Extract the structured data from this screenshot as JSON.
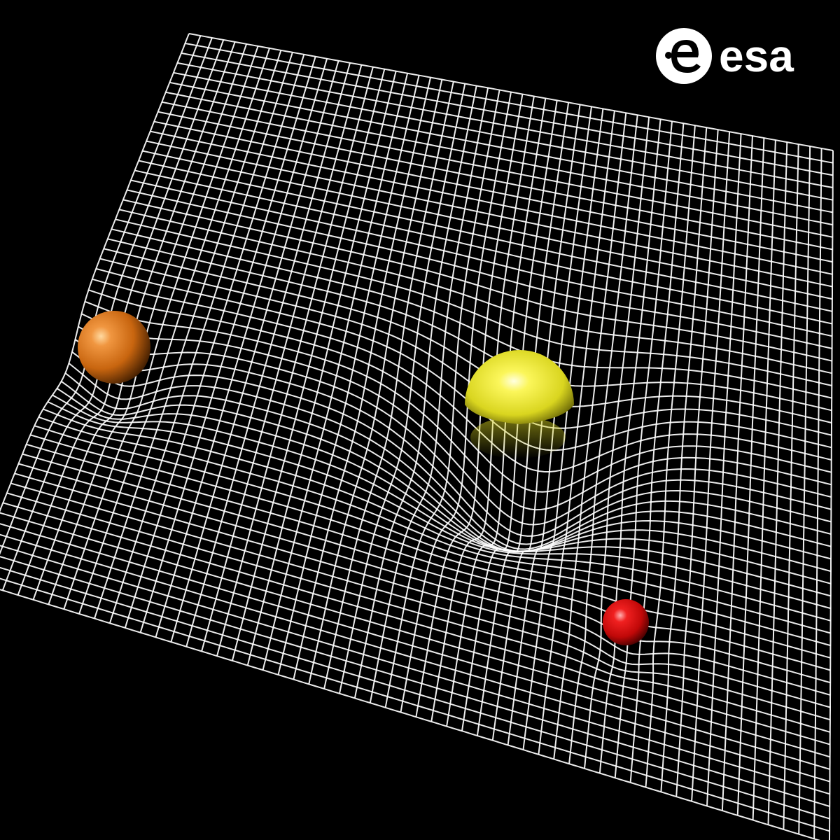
{
  "logo": {
    "text": "esa",
    "color": "#ffffff"
  },
  "scene": {
    "background": "#000000",
    "grid_color": "#ffffff",
    "bodies": [
      {
        "name": "orange-planet",
        "color": "#c8650f"
      },
      {
        "name": "yellow-star",
        "color": "#e6e12a"
      },
      {
        "name": "red-planet",
        "color": "#cc0a0a"
      }
    ]
  }
}
